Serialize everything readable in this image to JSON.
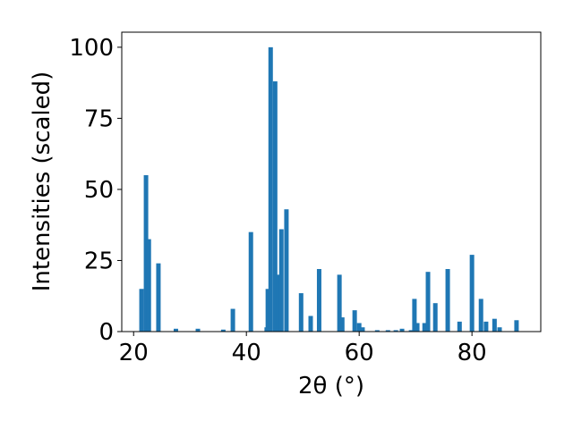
{
  "chart_data": {
    "type": "bar",
    "xlabel": "2θ (°)",
    "ylabel": "Intensities (scaled)",
    "x": [
      21.4,
      22.2,
      22.7,
      24.4,
      27.5,
      31.4,
      35.9,
      37.6,
      40.8,
      43.6,
      43.8,
      44.3,
      45.1,
      45.7,
      46.2,
      47.1,
      49.7,
      51.4,
      52.9,
      56.5,
      57.0,
      59.2,
      60.0,
      60.6,
      63.2,
      65.1,
      66.5,
      67.6,
      69.2,
      69.8,
      70.3,
      71.6,
      72.2,
      73.5,
      75.7,
      77.8,
      80.0,
      81.6,
      82.5,
      84.0,
      84.9,
      87.9
    ],
    "values": [
      15,
      55,
      32.5,
      24,
      1,
      1,
      0.7,
      8,
      35,
      1.5,
      15,
      100,
      88,
      20,
      36,
      43,
      13.5,
      5.5,
      22,
      20,
      5,
      7.5,
      3,
      1.5,
      0.5,
      0.5,
      0.5,
      1,
      0.5,
      11.5,
      3,
      3,
      21,
      10,
      22,
      3.5,
      27,
      11.5,
      3.5,
      4.5,
      1.5,
      4
    ],
    "color": "#1f77b4",
    "xlim": [
      17.9,
      92.2
    ],
    "xticks": [
      20,
      40,
      60,
      80
    ],
    "ylim": [
      0,
      105.3
    ],
    "yticks": [
      0,
      25,
      50,
      75,
      100
    ]
  }
}
